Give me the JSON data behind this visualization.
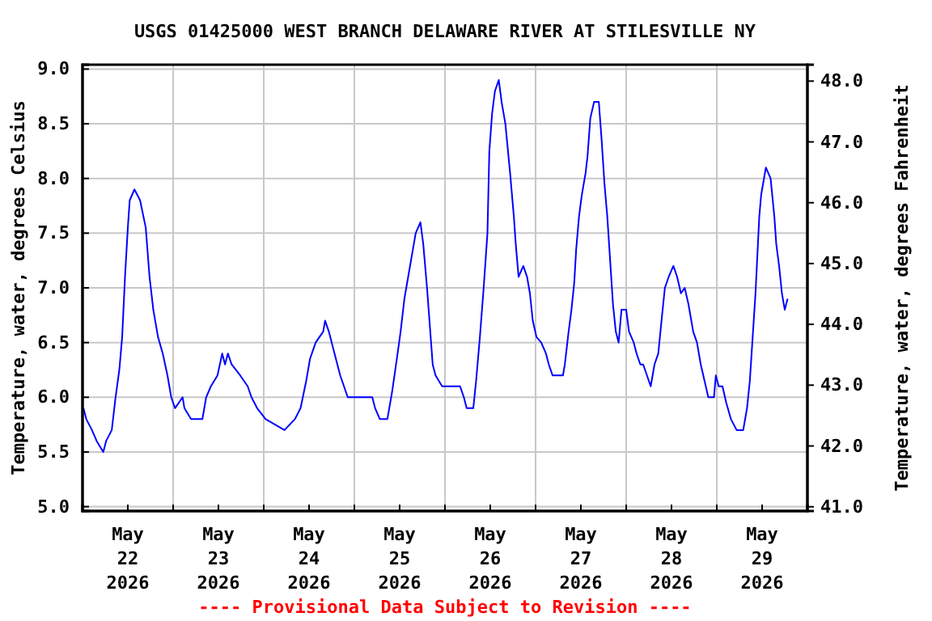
{
  "chart_data": {
    "type": "line",
    "title": "USGS 01425000 WEST BRANCH DELAWARE RIVER AT STILESVILLE NY",
    "ylabel": "Temperature, water, degrees Celsius",
    "y2label": "Temperature, water, degrees Fahrenheit",
    "annotations": [
      "---- Provisional Data Subject to Revision ----"
    ],
    "xlim": [
      "2026-05-22T00:00",
      "2026-05-30T00:00"
    ],
    "xticks": [
      {
        "value": "2026-05-22T00:00",
        "label": null
      },
      {
        "value": "2026-05-22T12:00",
        "label": "May\n22\n2026"
      },
      {
        "value": "2026-05-23T00:00",
        "label": null
      },
      {
        "value": "2026-05-23T12:00",
        "label": "May\n23\n2026"
      },
      {
        "value": "2026-05-24T00:00",
        "label": null
      },
      {
        "value": "2026-05-24T12:00",
        "label": "May\n24\n2026"
      },
      {
        "value": "2026-05-25T00:00",
        "label": null
      },
      {
        "value": "2026-05-25T12:00",
        "label": "May\n25\n2026"
      },
      {
        "value": "2026-05-26T00:00",
        "label": null
      },
      {
        "value": "2026-05-26T12:00",
        "label": "May\n26\n2026"
      },
      {
        "value": "2026-05-27T00:00",
        "label": null
      },
      {
        "value": "2026-05-27T12:00",
        "label": "May\n27\n2026"
      },
      {
        "value": "2026-05-28T00:00",
        "label": null
      },
      {
        "value": "2026-05-28T12:00",
        "label": "May\n28\n2026"
      },
      {
        "value": "2026-05-29T00:00",
        "label": null
      },
      {
        "value": "2026-05-29T12:00",
        "label": "May\n29\n2026"
      },
      {
        "value": "2026-05-30T00:00",
        "label": null
      }
    ],
    "ylim": [
      4.96,
      9.04
    ],
    "yticks": [
      {
        "value": 5,
        "label": "5.0"
      },
      {
        "value": 5.5,
        "label": "5.5"
      },
      {
        "value": 6,
        "label": "6.0"
      },
      {
        "value": 6.5,
        "label": "6.5"
      },
      {
        "value": 7,
        "label": "7.0"
      },
      {
        "value": 7.5,
        "label": "7.5"
      },
      {
        "value": 8,
        "label": "8.0"
      },
      {
        "value": 8.5,
        "label": "8.5"
      },
      {
        "value": 9,
        "label": "9.0"
      }
    ],
    "y2lim": [
      40.93,
      48.27
    ],
    "y2ticks": [
      {
        "value": 41,
        "label": "41.0"
      },
      {
        "value": 42,
        "label": "42.0"
      },
      {
        "value": 43,
        "label": "43.0"
      },
      {
        "value": 44,
        "label": "44.0"
      },
      {
        "value": 45,
        "label": "45.0"
      },
      {
        "value": 46,
        "label": "46.0"
      },
      {
        "value": 47,
        "label": "47.0"
      },
      {
        "value": 48,
        "label": "48.0"
      }
    ],
    "grid": true,
    "marker": "none",
    "line_style": "solid",
    "series": [
      {
        "color": "#0000ff",
        "x": [
          "2026-05-22T00:15",
          "2026-05-22T01:00",
          "2026-05-22T02:30",
          "2026-05-22T03:45",
          "2026-05-22T05:30",
          "2026-05-22T06:15",
          "2026-05-22T07:45",
          "2026-05-22T08:45",
          "2026-05-22T09:45",
          "2026-05-22T10:30",
          "2026-05-22T11:15",
          "2026-05-22T12:00",
          "2026-05-22T12:30",
          "2026-05-22T13:45",
          "2026-05-22T15:15",
          "2026-05-22T16:45",
          "2026-05-22T17:45",
          "2026-05-22T18:45",
          "2026-05-22T20:00",
          "2026-05-22T21:15",
          "2026-05-22T22:30",
          "2026-05-22T23:30",
          "2026-05-23T00:30",
          "2026-05-23T02:30",
          "2026-05-23T03:00",
          "2026-05-23T04:45",
          "2026-05-23T07:45",
          "2026-05-23T08:45",
          "2026-05-23T10:00",
          "2026-05-23T11:45",
          "2026-05-23T13:00",
          "2026-05-23T13:45",
          "2026-05-23T14:30",
          "2026-05-23T15:30",
          "2026-05-23T17:45",
          "2026-05-23T19:45",
          "2026-05-23T20:45",
          "2026-05-23T22:15",
          "2026-05-24T00:30",
          "2026-05-24T05:30",
          "2026-05-24T08:15",
          "2026-05-24T09:45",
          "2026-05-24T11:15",
          "2026-05-24T12:15",
          "2026-05-24T13:45",
          "2026-05-24T15:45",
          "2026-05-24T16:15",
          "2026-05-24T17:15",
          "2026-05-24T18:00",
          "2026-05-24T18:45",
          "2026-05-24T19:30",
          "2026-05-24T20:15",
          "2026-05-24T21:15",
          "2026-05-24T22:15",
          "2026-05-25T04:45",
          "2026-05-25T05:30",
          "2026-05-25T06:45",
          "2026-05-25T08:45",
          "2026-05-25T09:15",
          "2026-05-25T10:00",
          "2026-05-25T11:15",
          "2026-05-25T12:15",
          "2026-05-25T13:15",
          "2026-05-25T14:15",
          "2026-05-25T15:30",
          "2026-05-25T16:15",
          "2026-05-25T17:30",
          "2026-05-25T18:15",
          "2026-05-25T19:15",
          "2026-05-25T20:00",
          "2026-05-25T20:45",
          "2026-05-25T21:30",
          "2026-05-25T23:15",
          "2026-05-26T04:00",
          "2026-05-26T05:00",
          "2026-05-26T05:45",
          "2026-05-26T07:30",
          "2026-05-26T08:15",
          "2026-05-26T09:15",
          "2026-05-26T10:15",
          "2026-05-26T11:15",
          "2026-05-26T11:45",
          "2026-05-26T12:30",
          "2026-05-26T13:15",
          "2026-05-26T14:15",
          "2026-05-26T15:00",
          "2026-05-26T16:00",
          "2026-05-26T17:15",
          "2026-05-26T18:15",
          "2026-05-26T18:45",
          "2026-05-26T19:30",
          "2026-05-26T20:45",
          "2026-05-26T21:45",
          "2026-05-26T22:30",
          "2026-05-26T23:15",
          "2026-05-27T00:15",
          "2026-05-27T01:30",
          "2026-05-27T02:45",
          "2026-05-27T03:30",
          "2026-05-27T04:30",
          "2026-05-27T07:15",
          "2026-05-27T07:45",
          "2026-05-27T08:45",
          "2026-05-27T09:30",
          "2026-05-27T10:15",
          "2026-05-27T10:45",
          "2026-05-27T11:30",
          "2026-05-27T12:15",
          "2026-05-27T13:15",
          "2026-05-27T13:45",
          "2026-05-27T14:30",
          "2026-05-27T15:30",
          "2026-05-27T16:45",
          "2026-05-27T17:30",
          "2026-05-27T18:15",
          "2026-05-27T19:00",
          "2026-05-27T19:45",
          "2026-05-27T20:30",
          "2026-05-27T21:15",
          "2026-05-27T22:00",
          "2026-05-27T22:45",
          "2026-05-28T00:00",
          "2026-05-28T00:45",
          "2026-05-28T02:00",
          "2026-05-28T02:45",
          "2026-05-28T03:45",
          "2026-05-28T04:30",
          "2026-05-28T05:30",
          "2026-05-28T06:30",
          "2026-05-28T07:30",
          "2026-05-28T08:30",
          "2026-05-28T09:30",
          "2026-05-28T10:15",
          "2026-05-28T11:15",
          "2026-05-28T12:30",
          "2026-05-28T13:30",
          "2026-05-28T14:30",
          "2026-05-28T15:30",
          "2026-05-28T16:30",
          "2026-05-28T17:45",
          "2026-05-28T18:45",
          "2026-05-28T19:45",
          "2026-05-28T20:45",
          "2026-05-28T21:45",
          "2026-05-28T23:15",
          "2026-05-28T23:45",
          "2026-05-29T00:30",
          "2026-05-29T01:30",
          "2026-05-29T02:30",
          "2026-05-29T03:45",
          "2026-05-29T05:15",
          "2026-05-29T07:00",
          "2026-05-29T08:00",
          "2026-05-29T08:45",
          "2026-05-29T09:30",
          "2026-05-29T10:15",
          "2026-05-29T11:15",
          "2026-05-29T11:45",
          "2026-05-29T12:30",
          "2026-05-29T13:00",
          "2026-05-29T14:15",
          "2026-05-29T15:15",
          "2026-05-29T15:45",
          "2026-05-29T16:30",
          "2026-05-29T17:15",
          "2026-05-29T18:00",
          "2026-05-29T18:45"
        ],
        "values": [
          5.9,
          5.8,
          5.7,
          5.6,
          5.5,
          5.6,
          5.7,
          6.0,
          6.25,
          6.55,
          7.1,
          7.55,
          7.8,
          7.9,
          7.8,
          7.55,
          7.1,
          6.8,
          6.55,
          6.4,
          6.2,
          6.0,
          5.9,
          6.0,
          5.9,
          5.8,
          5.8,
          6.0,
          6.1,
          6.2,
          6.4,
          6.3,
          6.4,
          6.3,
          6.2,
          6.1,
          6.0,
          5.9,
          5.8,
          5.7,
          5.8,
          5.9,
          6.15,
          6.35,
          6.5,
          6.6,
          6.7,
          6.6,
          6.5,
          6.4,
          6.3,
          6.2,
          6.1,
          6.0,
          6.0,
          5.9,
          5.8,
          5.8,
          5.9,
          6.05,
          6.35,
          6.6,
          6.9,
          7.1,
          7.35,
          7.5,
          7.6,
          7.4,
          7.0,
          6.65,
          6.3,
          6.2,
          6.1,
          6.1,
          6.0,
          5.9,
          5.9,
          6.15,
          6.55,
          7.0,
          7.5,
          8.25,
          8.6,
          8.8,
          8.9,
          8.7,
          8.5,
          8.05,
          7.65,
          7.4,
          7.1,
          7.2,
          7.1,
          6.95,
          6.7,
          6.55,
          6.5,
          6.4,
          6.3,
          6.2,
          6.2,
          6.3,
          6.6,
          6.8,
          7.05,
          7.35,
          7.65,
          7.85,
          8.05,
          8.2,
          8.55,
          8.7,
          8.7,
          8.35,
          7.95,
          7.65,
          7.25,
          6.85,
          6.6,
          6.5,
          6.8,
          6.8,
          6.6,
          6.5,
          6.4,
          6.3,
          6.3,
          6.2,
          6.1,
          6.3,
          6.4,
          6.75,
          7.0,
          7.1,
          7.2,
          7.1,
          6.95,
          7.0,
          6.85,
          6.6,
          6.5,
          6.3,
          6.15,
          6.0,
          6.0,
          6.2,
          6.1,
          6.1,
          5.95,
          5.8,
          5.7,
          5.7,
          5.9,
          6.15,
          6.55,
          6.95,
          7.65,
          7.85,
          8.0,
          8.1,
          8.0,
          7.65,
          7.4,
          7.2,
          6.95,
          6.8,
          6.9
        ]
      }
    ]
  }
}
